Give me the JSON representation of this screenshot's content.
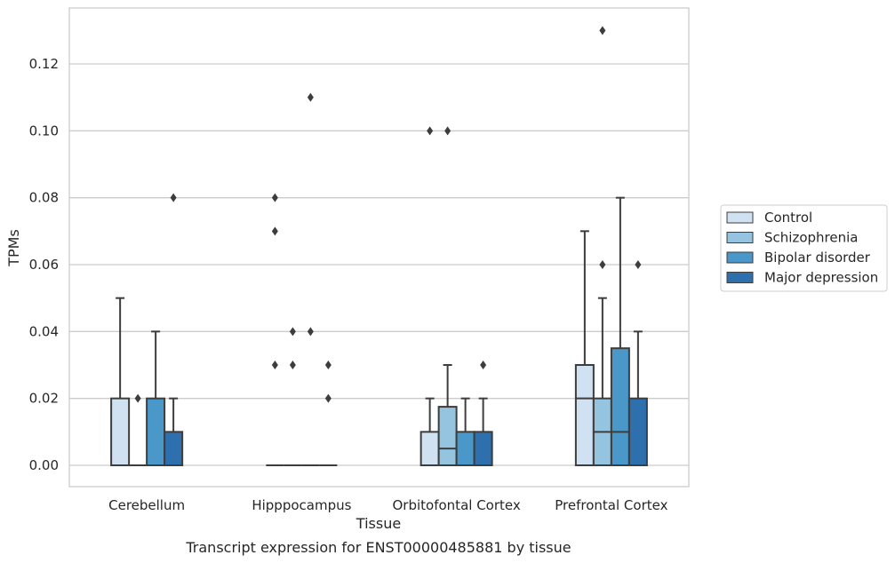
{
  "chart_data": {
    "type": "box",
    "xlabel": "Tissue",
    "ylabel": "TPMs",
    "caption": "Transcript expression for ENST00000485881 by tissue",
    "ylim": [
      -0.0065,
      0.1365
    ],
    "yticks": [
      "0.00",
      "0.02",
      "0.04",
      "0.06",
      "0.08",
      "0.10",
      "0.12"
    ],
    "grid": "horizontal",
    "legend_position": "right",
    "categories": [
      "Cerebellum",
      "Hipppocampus",
      "Orbitofontal Cortex",
      "Prefrontal Cortex"
    ],
    "series": [
      {
        "name": "Control",
        "color": "#d0e1f2",
        "boxes": [
          {
            "q1": 0,
            "median": 0,
            "q3": 0.02,
            "whisker_low": 0,
            "whisker_high": 0.05,
            "outliers": []
          },
          {
            "q1": 0,
            "median": 0,
            "q3": 0,
            "whisker_low": 0,
            "whisker_high": 0,
            "outliers": [
              0.03,
              0.07,
              0.08
            ]
          },
          {
            "q1": 0,
            "median": 0,
            "q3": 0.01,
            "whisker_low": 0,
            "whisker_high": 0.02,
            "outliers": [
              0.1
            ]
          },
          {
            "q1": 0,
            "median": 0.02,
            "q3": 0.03,
            "whisker_low": 0,
            "whisker_high": 0.07,
            "outliers": []
          }
        ]
      },
      {
        "name": "Schizophrenia",
        "color": "#94c4df",
        "boxes": [
          {
            "q1": 0,
            "median": 0,
            "q3": 0,
            "whisker_low": 0,
            "whisker_high": 0,
            "outliers": [
              0.02
            ]
          },
          {
            "q1": 0,
            "median": 0,
            "q3": 0,
            "whisker_low": 0,
            "whisker_high": 0,
            "outliers": [
              0.03,
              0.04
            ]
          },
          {
            "q1": 0,
            "median": 0.005,
            "q3": 0.0175,
            "whisker_low": 0,
            "whisker_high": 0.03,
            "outliers": [
              0.1
            ]
          },
          {
            "q1": 0,
            "median": 0.01,
            "q3": 0.02,
            "whisker_low": 0,
            "whisker_high": 0.05,
            "outliers": [
              0.06,
              0.13
            ]
          }
        ]
      },
      {
        "name": "Bipolar disorder",
        "color": "#4a98c9",
        "boxes": [
          {
            "q1": 0,
            "median": 0,
            "q3": 0.02,
            "whisker_low": 0,
            "whisker_high": 0.04,
            "outliers": []
          },
          {
            "q1": 0,
            "median": 0,
            "q3": 0,
            "whisker_low": 0,
            "whisker_high": 0,
            "outliers": [
              0.04,
              0.11
            ]
          },
          {
            "q1": 0,
            "median": 0,
            "q3": 0.01,
            "whisker_low": 0,
            "whisker_high": 0.02,
            "outliers": []
          },
          {
            "q1": 0,
            "median": 0.01,
            "q3": 0.035,
            "whisker_low": 0,
            "whisker_high": 0.08,
            "outliers": []
          }
        ]
      },
      {
        "name": "Major depression",
        "color": "#2e6fae",
        "boxes": [
          {
            "q1": 0,
            "median": 0,
            "q3": 0.01,
            "whisker_low": 0,
            "whisker_high": 0.02,
            "outliers": [
              0.08
            ]
          },
          {
            "q1": 0,
            "median": 0,
            "q3": 0,
            "whisker_low": 0,
            "whisker_high": 0,
            "outliers": [
              0.02,
              0.03
            ]
          },
          {
            "q1": 0,
            "median": 0,
            "q3": 0.01,
            "whisker_low": 0,
            "whisker_high": 0.02,
            "outliers": [
              0.03
            ]
          },
          {
            "q1": 0,
            "median": 0,
            "q3": 0.02,
            "whisker_low": 0,
            "whisker_high": 0.04,
            "outliers": [
              0.06
            ]
          }
        ]
      }
    ]
  },
  "colors": {
    "grid": "#cccccc",
    "frame": "#cccccc",
    "box_edge": "#3d3d3d",
    "text": "#262626"
  }
}
